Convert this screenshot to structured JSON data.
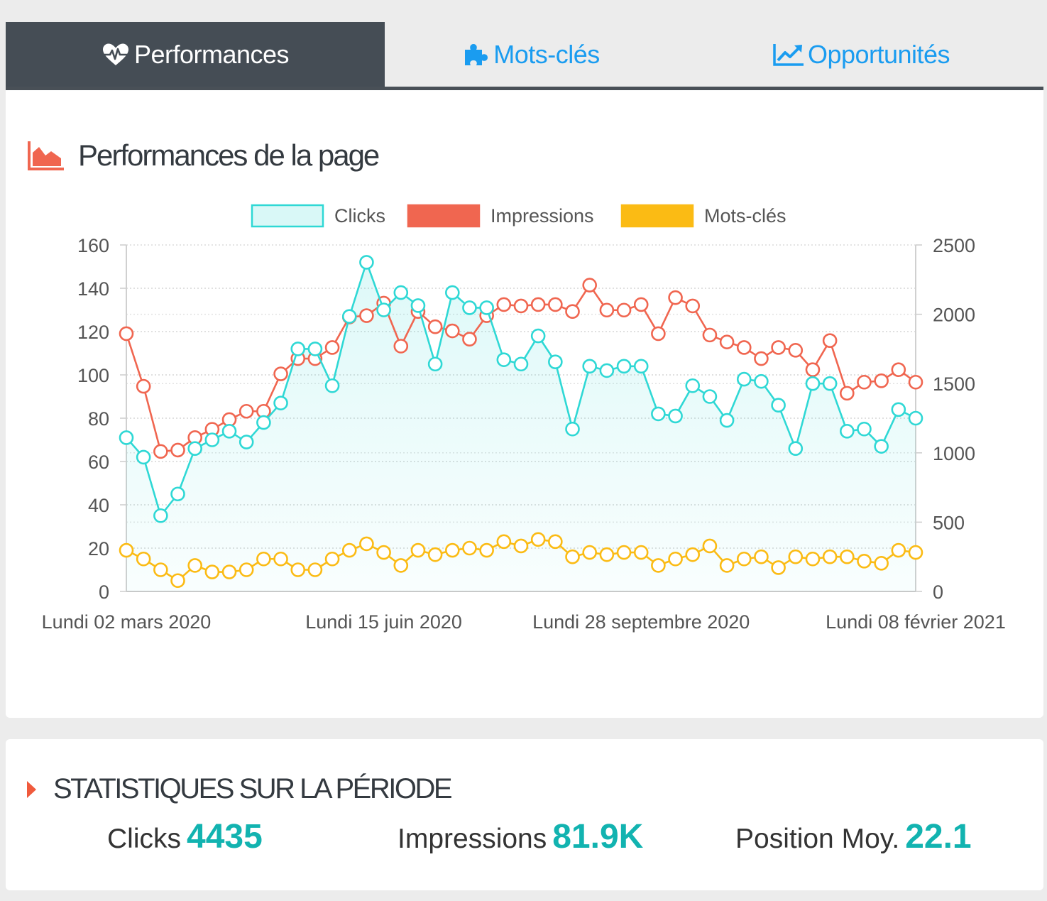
{
  "tabs": [
    {
      "label": "Performances",
      "icon": "heartbeat-icon",
      "active": true
    },
    {
      "label": "Mots-clés",
      "icon": "puzzle-icon",
      "active": false
    },
    {
      "label": "Opportunités",
      "icon": "line-chart-icon",
      "active": false
    }
  ],
  "colors": {
    "clicks": "#2fd8d5",
    "impressions": "#f06650",
    "mots_cles": "#fbbb14",
    "accent": "#12b3b0",
    "tab_active_bg": "#454d55",
    "tab_link": "#1a9cf0"
  },
  "chart_section": {
    "title": "Performances de la page",
    "icon": "area-chart-icon"
  },
  "chart_data": {
    "type": "line",
    "legend": [
      "Clicks",
      "Impressions",
      "Mots-clés"
    ],
    "legend_placement": "top",
    "x_tick_labels": [
      "Lundi 02 mars 2020",
      "Lundi 15 juin 2020",
      "Lundi 28 septembre 2020",
      "Lundi 08 février 2021"
    ],
    "y_left": {
      "min": 0,
      "max": 160,
      "ticks": [
        0,
        20,
        40,
        60,
        80,
        100,
        120,
        140,
        160
      ]
    },
    "y_right": {
      "min": 0,
      "max": 2500,
      "ticks": [
        0,
        500,
        1000,
        1500,
        2000,
        2500
      ]
    },
    "grid": true,
    "series": [
      {
        "name": "Clicks",
        "axis": "left",
        "fill": true,
        "values": [
          71,
          62,
          35,
          45,
          66,
          70,
          74,
          69,
          78,
          87,
          112,
          112,
          95,
          127,
          152,
          130,
          138,
          132,
          105,
          138,
          131,
          131,
          107,
          105,
          118,
          106,
          75,
          104,
          102,
          104,
          104,
          82,
          81,
          95,
          90,
          79,
          98,
          97,
          86,
          66,
          96,
          96,
          74,
          75,
          67,
          84,
          80
        ]
      },
      {
        "name": "Impressions",
        "axis": "right",
        "fill": false,
        "values": [
          1860,
          1480,
          1010,
          1020,
          1110,
          1170,
          1240,
          1300,
          1300,
          1570,
          1680,
          1680,
          1760,
          1980,
          1990,
          2080,
          1770,
          2020,
          1910,
          1880,
          1820,
          1990,
          2070,
          2060,
          2070,
          2070,
          2020,
          2210,
          2030,
          2030,
          2070,
          1860,
          2120,
          2060,
          1850,
          1800,
          1760,
          1680,
          1760,
          1740,
          1600,
          1810,
          1430,
          1510,
          1520,
          1600,
          1510
        ]
      },
      {
        "name": "Mots-clés",
        "axis": "left",
        "fill": false,
        "values": [
          19,
          15,
          10,
          5,
          12,
          9,
          9,
          10,
          15,
          15,
          10,
          10,
          15,
          19,
          22,
          18,
          12,
          19,
          17,
          19,
          20,
          19,
          23,
          21,
          24,
          23,
          16,
          18,
          17,
          18,
          18,
          12,
          15,
          17,
          21,
          12,
          15,
          16,
          11,
          16,
          15,
          16,
          16,
          14,
          13,
          19,
          18
        ]
      }
    ]
  },
  "stats": {
    "title": "STATISTIQUES SUR LA PÉRIODE",
    "items": [
      {
        "label": "Clicks",
        "value": "4435"
      },
      {
        "label": "Impressions",
        "value": "81.9K"
      },
      {
        "label": "Position Moy.",
        "value": "22.1"
      }
    ]
  }
}
